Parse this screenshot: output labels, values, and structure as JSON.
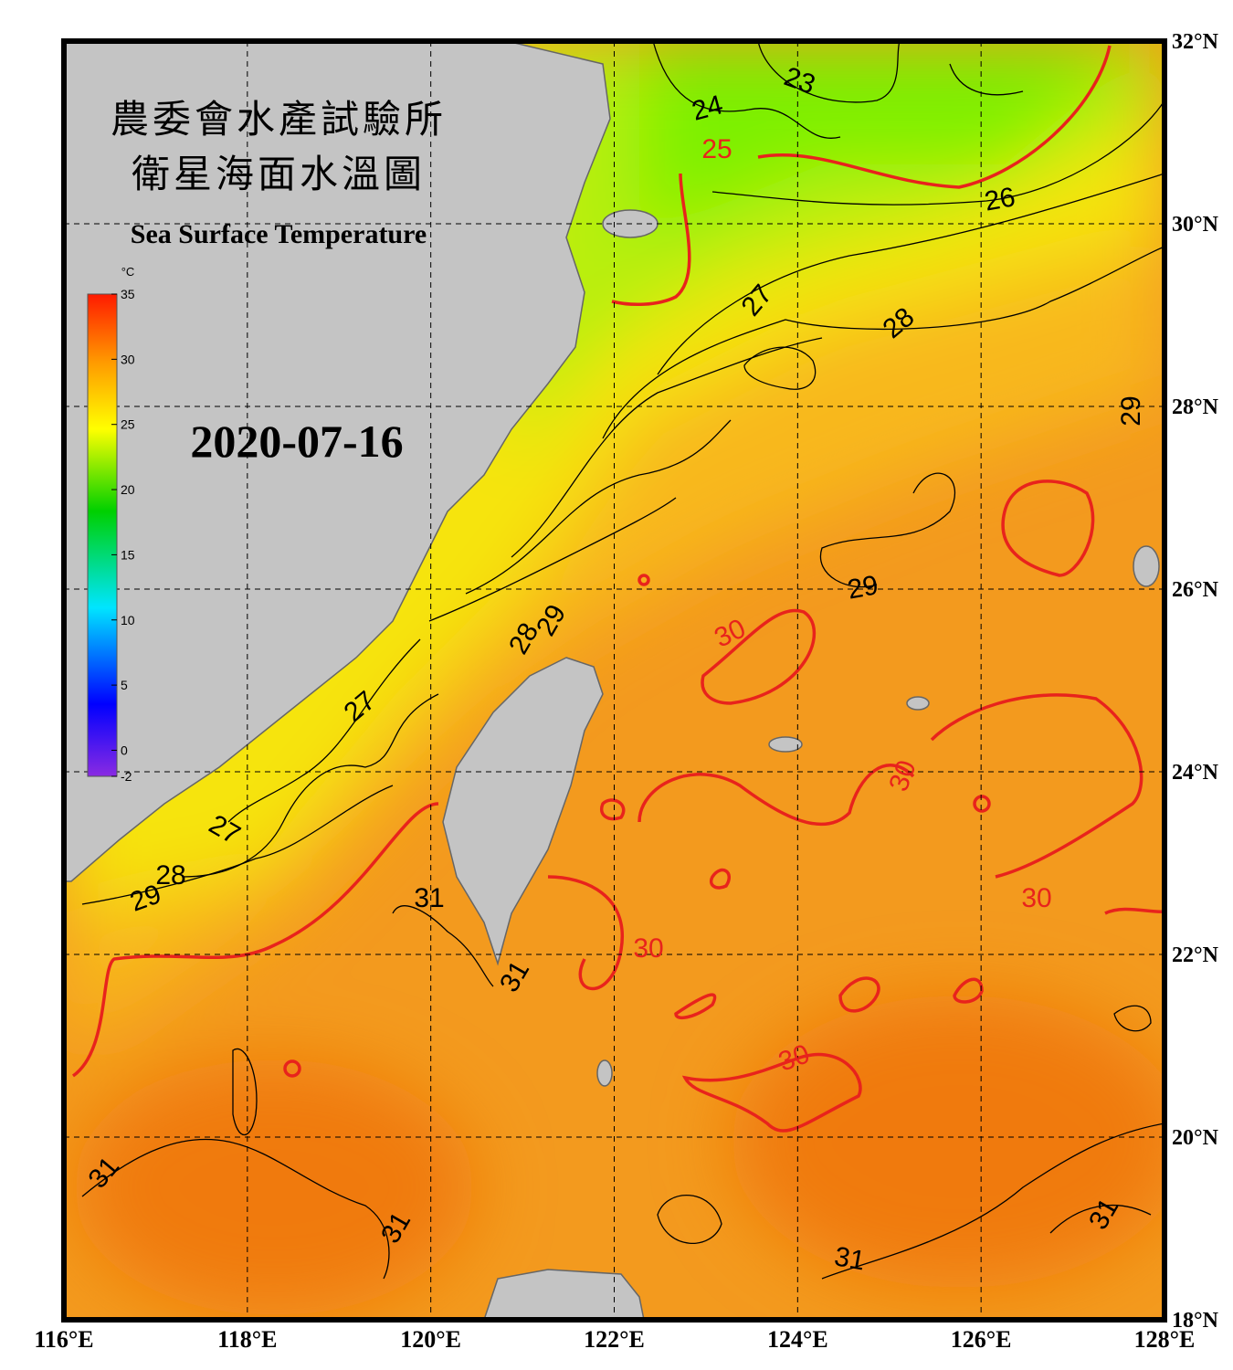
{
  "header": {
    "title_lines": [
      "農委會水產試驗所",
      "衛星海面水溫圖"
    ],
    "subtitle": "Sea Surface Temperature",
    "date": "2020-07-16"
  },
  "colorbar": {
    "unit": "°C",
    "range": [
      -2,
      35
    ],
    "ticks": [
      35,
      30,
      25,
      20,
      15,
      10,
      5,
      0,
      -2
    ]
  },
  "axes": {
    "xlim": [
      116,
      128
    ],
    "xticks": [
      {
        "value": 116,
        "label": "116°E"
      },
      {
        "value": 118,
        "label": "118°E"
      },
      {
        "value": 120,
        "label": "120°E"
      },
      {
        "value": 122,
        "label": "122°E"
      },
      {
        "value": 124,
        "label": "124°E"
      },
      {
        "value": 126,
        "label": "126°E"
      },
      {
        "value": 128,
        "label": "128°E"
      }
    ],
    "ylim": [
      18,
      32
    ],
    "yticks": [
      {
        "value": 18,
        "label": "18°N"
      },
      {
        "value": 20,
        "label": "20°N"
      },
      {
        "value": 22,
        "label": "22°N"
      },
      {
        "value": 24,
        "label": "24°N"
      },
      {
        "value": 26,
        "label": "26°N"
      },
      {
        "value": 28,
        "label": "28°N"
      },
      {
        "value": 30,
        "label": "30°N"
      },
      {
        "value": 32,
        "label": "32°N"
      }
    ],
    "grid": true
  },
  "contour_labels": [
    {
      "text": "23",
      "color": "#000"
    },
    {
      "text": "24",
      "color": "#000"
    },
    {
      "text": "25",
      "color": "#e8231c"
    },
    {
      "text": "26",
      "color": "#000"
    },
    {
      "text": "27",
      "color": "#000"
    },
    {
      "text": "28",
      "color": "#000"
    },
    {
      "text": "29",
      "color": "#000"
    },
    {
      "text": "29",
      "color": "#000"
    },
    {
      "text": "30",
      "color": "#e8231c"
    },
    {
      "text": "30",
      "color": "#e8231c"
    },
    {
      "text": "30",
      "color": "#e8231c"
    },
    {
      "text": "30",
      "color": "#e8231c"
    },
    {
      "text": "30",
      "color": "#e8231c"
    },
    {
      "text": "28",
      "color": "#000"
    },
    {
      "text": "29",
      "color": "#000"
    },
    {
      "text": "27",
      "color": "#000"
    },
    {
      "text": "27",
      "color": "#000"
    },
    {
      "text": "28",
      "color": "#000"
    },
    {
      "text": "29",
      "color": "#000"
    },
    {
      "text": "31",
      "color": "#000"
    },
    {
      "text": "31",
      "color": "#000"
    },
    {
      "text": "31",
      "color": "#000"
    },
    {
      "text": "31",
      "color": "#000"
    },
    {
      "text": "31",
      "color": "#000"
    },
    {
      "text": "31",
      "color": "#000"
    }
  ]
}
